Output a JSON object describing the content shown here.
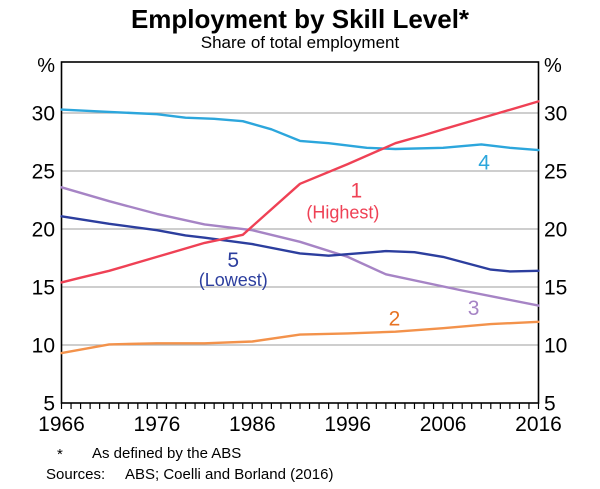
{
  "header": {
    "title": "Employment by Skill Level*",
    "subtitle": "Share of total employment"
  },
  "footer": {
    "footnote_marker": "*",
    "footnote_text": "As defined by the ABS",
    "sources_label": "Sources:",
    "sources_text": "ABS; Coelli and Borland (2016)"
  },
  "chart_data": {
    "type": "line",
    "title": "Employment by Skill Level*",
    "subtitle": "Share of total employment",
    "unit_label": "%",
    "xlim": [
      1966,
      2016
    ],
    "ylim": [
      5,
      34.4
    ],
    "x_tick_labels": [
      "1966",
      "1976",
      "1986",
      "1996",
      "2006",
      "2016"
    ],
    "x_minor_tick_step": 1,
    "y_ticks": [
      5,
      10,
      15,
      20,
      25,
      30
    ],
    "grid": "horizontal-gray-lines",
    "legend": "inline-labels-on-lines",
    "colors": {
      "axis": "#000000",
      "grid": "#b1b1b1",
      "background": "#ffffff"
    },
    "series": [
      {
        "name": "1 (Highest)",
        "color": "#ef4155",
        "points": [
          [
            1966,
            15.4
          ],
          [
            1968,
            15.8
          ],
          [
            1971,
            16.4
          ],
          [
            1976,
            17.6
          ],
          [
            1981,
            18.8
          ],
          [
            1985,
            19.5
          ],
          [
            1991,
            23.9
          ],
          [
            1996,
            25.6
          ],
          [
            2001,
            27.4
          ],
          [
            2004,
            28.1
          ],
          [
            2006,
            28.6
          ],
          [
            2011,
            29.8
          ],
          [
            2016,
            31.0
          ]
        ],
        "labels": [
          {
            "text": "1",
            "year": 1996.9,
            "value": 23.3,
            "style": "number"
          },
          {
            "text": "(Highest)",
            "year": 1995.5,
            "value": 21.5,
            "style": "word"
          }
        ]
      },
      {
        "name": "2",
        "color": "#f3924b",
        "label_color": "#e77324",
        "points": [
          [
            1966,
            9.3
          ],
          [
            1971,
            10.05
          ],
          [
            1976,
            10.15
          ],
          [
            1981,
            10.15
          ],
          [
            1986,
            10.3
          ],
          [
            1991,
            10.9
          ],
          [
            1996,
            11.0
          ],
          [
            2001,
            11.15
          ],
          [
            2006,
            11.45
          ],
          [
            2011,
            11.8
          ],
          [
            2016,
            12.0
          ]
        ],
        "labels": [
          {
            "text": "2",
            "year": 2000.9,
            "value": 12.3,
            "style": "number"
          }
        ]
      },
      {
        "name": "3",
        "color": "#a684c5",
        "points": [
          [
            1966,
            23.6
          ],
          [
            1971,
            22.4
          ],
          [
            1976,
            21.3
          ],
          [
            1981,
            20.4
          ],
          [
            1986,
            19.9
          ],
          [
            1991,
            18.9
          ],
          [
            1996,
            17.6
          ],
          [
            2000,
            16.1
          ],
          [
            2008,
            14.7
          ],
          [
            2016,
            13.4
          ]
        ],
        "labels": [
          {
            "text": "3",
            "year": 2009.2,
            "value": 13.2,
            "style": "number"
          }
        ]
      },
      {
        "name": "4",
        "color": "#2ca6dc",
        "points": [
          [
            1966,
            30.3
          ],
          [
            1971,
            30.1
          ],
          [
            1976,
            29.9
          ],
          [
            1979,
            29.6
          ],
          [
            1982,
            29.5
          ],
          [
            1985,
            29.3
          ],
          [
            1988,
            28.6
          ],
          [
            1991,
            27.6
          ],
          [
            1994,
            27.4
          ],
          [
            1998,
            27.0
          ],
          [
            2001,
            26.9
          ],
          [
            2006,
            27.0
          ],
          [
            2010,
            27.3
          ],
          [
            2013,
            27.0
          ],
          [
            2016,
            26.8
          ]
        ],
        "labels": [
          {
            "text": "4",
            "year": 2010.3,
            "value": 25.75,
            "style": "number"
          }
        ]
      },
      {
        "name": "5 (Lowest)",
        "color": "#2c3e9e",
        "points": [
          [
            1966,
            21.1
          ],
          [
            1971,
            20.45
          ],
          [
            1976,
            19.9
          ],
          [
            1979,
            19.45
          ],
          [
            1981,
            19.25
          ],
          [
            1986,
            18.7
          ],
          [
            1991,
            17.9
          ],
          [
            1994,
            17.7
          ],
          [
            2000,
            18.1
          ],
          [
            2003,
            18.0
          ],
          [
            2006,
            17.6
          ],
          [
            2011,
            16.5
          ],
          [
            2013,
            16.35
          ],
          [
            2016,
            16.4
          ]
        ],
        "labels": [
          {
            "text": "5",
            "year": 1984,
            "value": 17.35,
            "style": "number"
          },
          {
            "text": "(Lowest)",
            "year": 1984,
            "value": 15.7,
            "style": "word"
          }
        ]
      }
    ]
  }
}
